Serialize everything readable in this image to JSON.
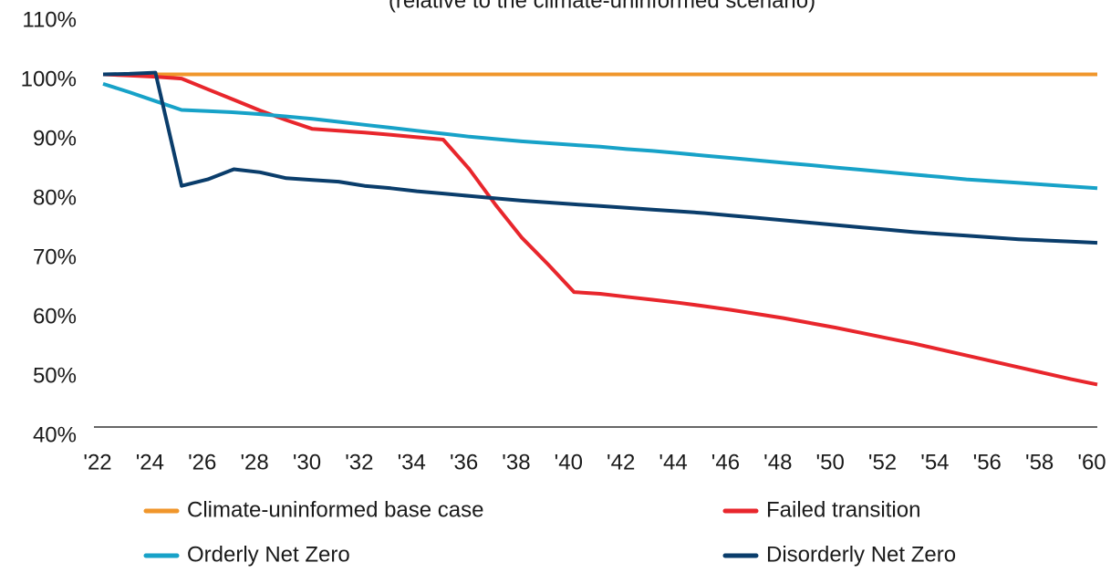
{
  "chart_data": {
    "type": "line",
    "subtitle": "(relative to the climate-uninformed scenario)",
    "categories": [
      "'22",
      null,
      "'24",
      null,
      "'26",
      null,
      "'28",
      null,
      "'30",
      null,
      "'32",
      null,
      "'34",
      null,
      "'36",
      null,
      "'38",
      null,
      "'40",
      null,
      "'42",
      null,
      "'44",
      null,
      "'46",
      null,
      "'48",
      null,
      "'50",
      null,
      "'52",
      null,
      "'54",
      null,
      "'56",
      null,
      "'58",
      null,
      "'60"
    ],
    "ylim": [
      40,
      110
    ],
    "yticks": [
      {
        "value": 40,
        "label": "40%"
      },
      {
        "value": 50,
        "label": "50%"
      },
      {
        "value": 60,
        "label": "60%"
      },
      {
        "value": 70,
        "label": "70%"
      },
      {
        "value": 80,
        "label": "80%"
      },
      {
        "value": 90,
        "label": "90%"
      },
      {
        "value": 100,
        "label": "100%"
      },
      {
        "value": 110,
        "label": "110%"
      }
    ],
    "grid": false,
    "legend": "bottom",
    "series": [
      {
        "name": "Climate-uninformed base case",
        "color": "#f0962b",
        "values": [
          101,
          101,
          101,
          101,
          101,
          101,
          101,
          101,
          101,
          101,
          101,
          101,
          101,
          101,
          101,
          101,
          101,
          101,
          101,
          101,
          101,
          101,
          101,
          101,
          101,
          101,
          101,
          101,
          101,
          101,
          101,
          101,
          101,
          101,
          101,
          101,
          101,
          101,
          101
        ]
      },
      {
        "name": "Failed transition",
        "color": "#e8262c",
        "values": [
          101,
          100.8,
          100.6,
          100.3,
          98.5,
          96.7,
          94.9,
          93.3,
          91.8,
          91.5,
          91.2,
          90.8,
          90.4,
          90,
          85,
          79,
          73.5,
          69,
          64.3,
          64,
          63.5,
          63,
          62.5,
          61.9,
          61.3,
          60.6,
          59.9,
          59.1,
          58.3,
          57.4,
          56.5,
          55.6,
          54.6,
          53.6,
          52.6,
          51.6,
          50.6,
          49.6,
          48.7
        ]
      },
      {
        "name": "Orderly Net Zero",
        "color": "#17a2c8",
        "values": [
          99.4,
          98,
          96.5,
          95,
          94.8,
          94.6,
          94.3,
          93.9,
          93.5,
          93,
          92.5,
          92,
          91.5,
          91,
          90.5,
          90.1,
          89.7,
          89.4,
          89.1,
          88.8,
          88.4,
          88.1,
          87.7,
          87.3,
          86.9,
          86.5,
          86.1,
          85.7,
          85.3,
          84.9,
          84.5,
          84.1,
          83.7,
          83.3,
          83,
          82.7,
          82.4,
          82.1,
          81.8
        ]
      },
      {
        "name": "Disorderly Net Zero",
        "color": "#0a3d6b",
        "values": [
          101,
          101.1,
          101.3,
          82.2,
          83.3,
          85,
          84.5,
          83.5,
          83.2,
          82.9,
          82.2,
          81.8,
          81.3,
          80.9,
          80.5,
          80.1,
          79.7,
          79.4,
          79.1,
          78.8,
          78.5,
          78.2,
          77.9,
          77.6,
          77.2,
          76.8,
          76.4,
          76,
          75.6,
          75.2,
          74.8,
          74.4,
          74.1,
          73.8,
          73.5,
          73.2,
          73,
          72.8,
          72.6
        ]
      }
    ]
  }
}
